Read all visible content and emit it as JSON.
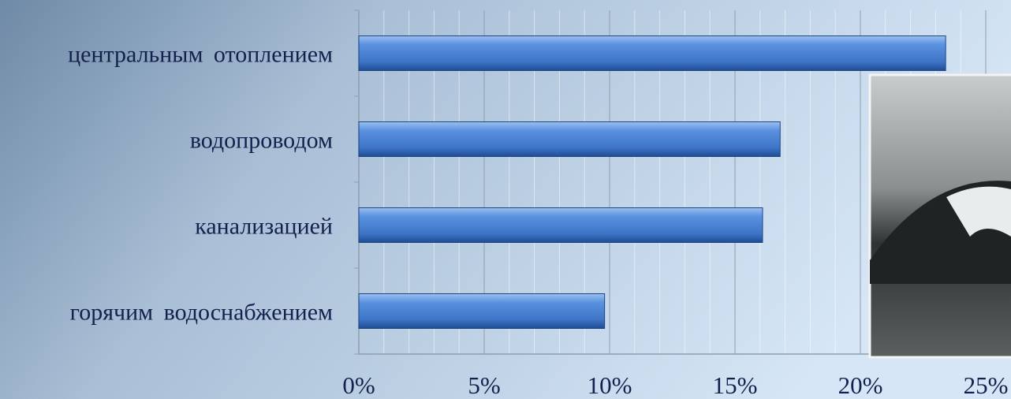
{
  "chart_data": {
    "type": "bar",
    "orientation": "horizontal",
    "categories": [
      "центральным отоплением",
      "водопроводом",
      "канализацией",
      "горячим водоснабжением"
    ],
    "values": [
      23.4,
      16.8,
      16.1,
      9.8
    ],
    "color": "#4a80d0",
    "xlim": [
      0,
      25
    ],
    "xticks": [
      {
        "value": 0,
        "label": "0%"
      },
      {
        "value": 5,
        "label": "5%"
      },
      {
        "value": 10,
        "label": "10%"
      },
      {
        "value": 15,
        "label": "15%"
      },
      {
        "value": 20,
        "label": "20%"
      },
      {
        "value": 25,
        "label": "25%"
      }
    ],
    "xminorticks": [
      1,
      2,
      3,
      4,
      6,
      7,
      8,
      9,
      11,
      12,
      13,
      14,
      16,
      17,
      18,
      19,
      21,
      22,
      23,
      24
    ],
    "grid": true
  }
}
